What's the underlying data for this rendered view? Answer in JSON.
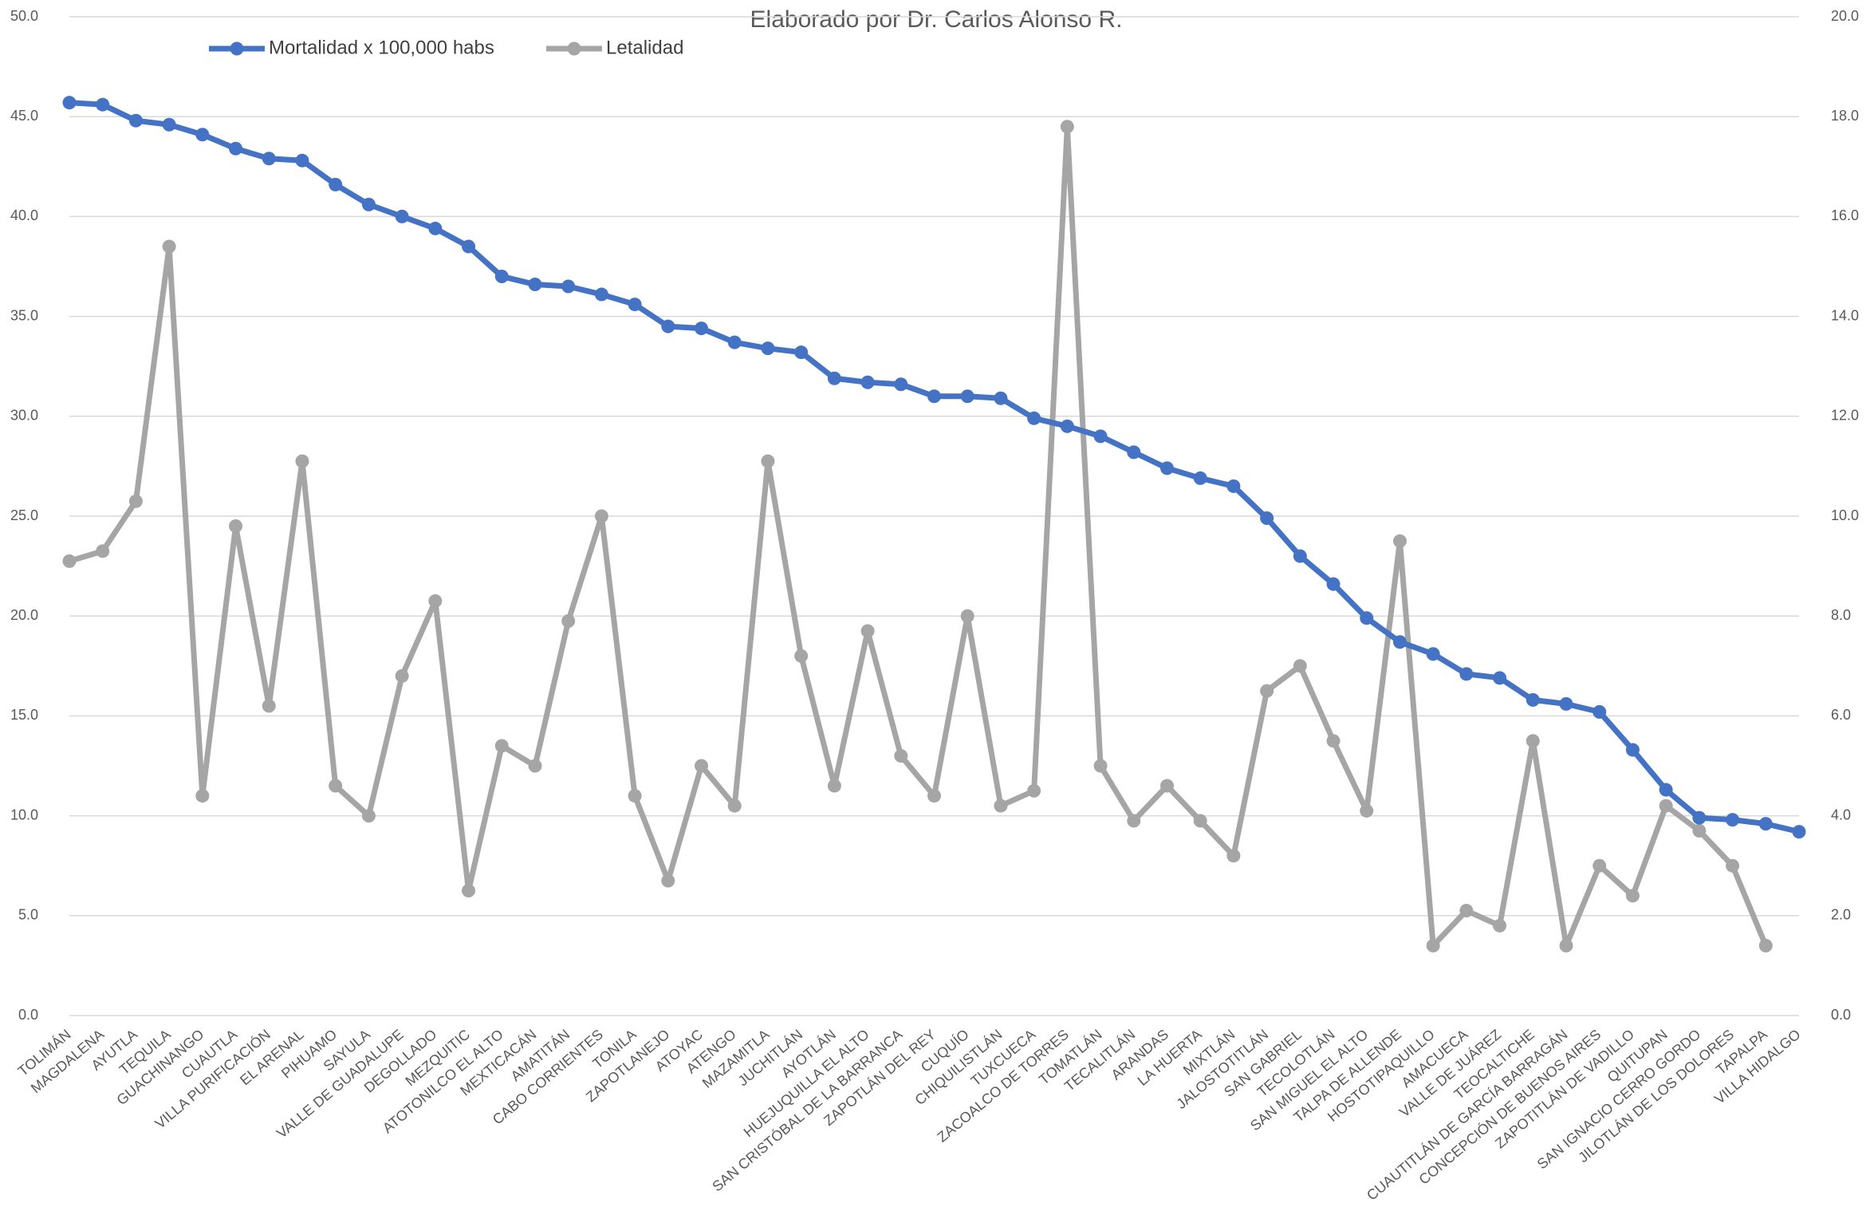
{
  "chart_data": {
    "type": "line",
    "subtitle": "Elaborado por Dr. Carlos Alonso R.",
    "categories": [
      "TOLIMÁN",
      "MAGDALENA",
      "AYUTLA",
      "TEQUILA",
      "GUACHINANGO",
      "CUAUTLA",
      "VILLA PURIFICACIÓN",
      "EL ARENAL",
      "PIHUAMO",
      "SAYULA",
      "VALLE DE GUADALUPE",
      "DEGOLLADO",
      "MEZQUITIC",
      "ATOTONILCO EL ALTO",
      "MEXTICACÁN",
      "AMATITÁN",
      "CABO CORRIENTES",
      "TONILA",
      "ZAPOTLANEJO",
      "ATOYAC",
      "ATENGO",
      "MAZAMITLA",
      "JUCHITLÁN",
      "AYOTLÁN",
      "HUEJUQUILLA EL ALTO",
      "SAN CRISTÓBAL DE LA BARRANCA",
      "ZAPOTLÁN DEL REY",
      "CUQUÍO",
      "CHIQUILISTLÁN",
      "TUXCUECA",
      "ZACOALCO DE TORRES",
      "TOMATLÁN",
      "TECALITLÁN",
      "ARANDAS",
      "LA HUERTA",
      "MIXTLÁN",
      "JALOSTOTITLÁN",
      "SAN GABRIEL",
      "TECOLOTLÁN",
      "SAN MIGUEL EL ALTO",
      "TALPA DE ALLENDE",
      "HOSTOTIPAQUILLO",
      "AMACUECA",
      "VALLE DE JUÁREZ",
      "TEOCALTICHE",
      "CUAUTITLÁN DE GARCÍA BARRAGÁN",
      "CONCEPCIÓN DE BUENOS AIRES",
      "ZAPOTITLÁN DE VADILLO",
      "QUITUPAN",
      "SAN IGNACIO CERRO GORDO",
      "JILOTLÁN DE LOS DOLORES",
      "TAPALPA",
      "VILLA HIDALGO"
    ],
    "series": [
      {
        "name": "Mortalidad x 100,000 habs",
        "color": "#4472c4",
        "values": [
          45.7,
          45.6,
          44.8,
          44.6,
          44.1,
          43.4,
          42.9,
          42.8,
          41.6,
          40.6,
          40.0,
          39.4,
          38.5,
          37.0,
          36.6,
          36.5,
          36.1,
          35.6,
          34.5,
          34.4,
          33.7,
          33.4,
          33.2,
          31.9,
          31.7,
          31.6,
          31.0,
          31.0,
          30.9,
          29.9,
          29.5,
          29.0,
          28.2,
          27.4,
          26.9,
          26.5,
          24.9,
          23.0,
          21.6,
          19.9,
          18.7,
          18.1,
          17.1,
          16.9,
          15.8,
          15.6,
          15.2,
          13.3,
          11.3,
          9.9,
          9.8,
          9.6,
          9.2
        ]
      },
      {
        "name": "Letalidad",
        "color": "#a5a5a5",
        "axis": "y2",
        "values": [
          9.1,
          9.3,
          10.3,
          15.4,
          4.4,
          9.8,
          6.2,
          11.1,
          4.6,
          4.0,
          6.8,
          8.3,
          2.5,
          5.4,
          5.0,
          7.9,
          10.0,
          4.4,
          2.7,
          5.0,
          4.2,
          11.1,
          7.2,
          4.6,
          7.7,
          5.2,
          4.4,
          8.0,
          4.2,
          4.5,
          17.8,
          5.0,
          3.9,
          4.6,
          3.9,
          3.2,
          6.5,
          7.0,
          5.5,
          4.1,
          9.5,
          1.4,
          2.1,
          1.8,
          5.5,
          1.4,
          3.0,
          2.4,
          4.2,
          3.7,
          3.0,
          1.4,
          null
        ]
      }
    ],
    "ylim": [
      0,
      50
    ],
    "yticks": [
      {
        "value": 0,
        "label": "0.0"
      },
      {
        "value": 5,
        "label": "5.0"
      },
      {
        "value": 10,
        "label": "10.0"
      },
      {
        "value": 15,
        "label": "15.0"
      },
      {
        "value": 20,
        "label": "20.0"
      },
      {
        "value": 25,
        "label": "25.0"
      },
      {
        "value": 30,
        "label": "30.0"
      },
      {
        "value": 35,
        "label": "35.0"
      },
      {
        "value": 40,
        "label": "40.0"
      },
      {
        "value": 45,
        "label": "45.0"
      },
      {
        "value": 50,
        "label": "50.0"
      }
    ],
    "y2lim": [
      0,
      20
    ],
    "y2ticks": [
      {
        "value": 0,
        "label": "0.0"
      },
      {
        "value": 2,
        "label": "2.0"
      },
      {
        "value": 4,
        "label": "4.0"
      },
      {
        "value": 6,
        "label": "6.0"
      },
      {
        "value": 8,
        "label": "8.0"
      },
      {
        "value": 10,
        "label": "10.0"
      },
      {
        "value": 12,
        "label": "12.0"
      },
      {
        "value": 14,
        "label": "14.0"
      },
      {
        "value": 16,
        "label": "16.0"
      },
      {
        "value": 18,
        "label": "18.0"
      },
      {
        "value": 20,
        "label": "20.0"
      }
    ],
    "grid": true
  }
}
